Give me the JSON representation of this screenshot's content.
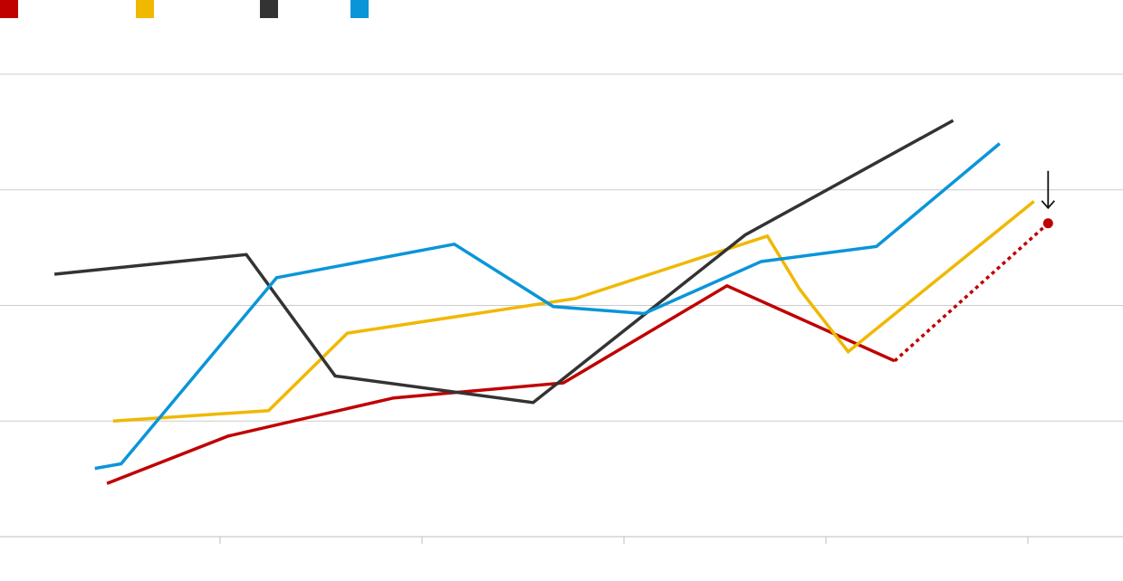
{
  "chart_data": {
    "type": "line",
    "title": "",
    "xlabel": "",
    "ylabel": "",
    "x": [
      0,
      1,
      2,
      3,
      4,
      5
    ],
    "xlim": [
      0,
      5.3
    ],
    "ylim": [
      0,
      4
    ],
    "grid": true,
    "legend_position": "top-left",
    "series": [
      {
        "name": "",
        "color": "#c00000",
        "points": [
          [
            0.44,
            0.46
          ],
          [
            1.04,
            0.87
          ],
          [
            1.86,
            1.2
          ],
          [
            2.7,
            1.33
          ],
          [
            3.51,
            2.17
          ],
          [
            4.34,
            1.52
          ],
          [
            5.1,
            2.71
          ]
        ],
        "dashed_from_index": 5,
        "end_marker": true
      },
      {
        "name": "",
        "color": "#f0b800",
        "points": [
          [
            0.47,
            1.0
          ],
          [
            1.24,
            1.09
          ],
          [
            1.63,
            1.76
          ],
          [
            2.76,
            2.06
          ],
          [
            3.71,
            2.6
          ],
          [
            3.87,
            2.14
          ],
          [
            4.11,
            1.6
          ],
          [
            5.03,
            2.9
          ]
        ]
      },
      {
        "name": "",
        "color": "#333333",
        "points": [
          [
            0.18,
            2.27
          ],
          [
            1.13,
            2.44
          ],
          [
            1.57,
            1.39
          ],
          [
            2.55,
            1.16
          ],
          [
            3.6,
            2.61
          ],
          [
            4.63,
            3.6
          ]
        ]
      },
      {
        "name": "",
        "color": "#0a95d9",
        "points": [
          [
            0.38,
            0.59
          ],
          [
            0.51,
            0.63
          ],
          [
            1.28,
            2.24
          ],
          [
            2.16,
            2.53
          ],
          [
            2.65,
            1.99
          ],
          [
            3.1,
            1.93
          ],
          [
            3.68,
            2.38
          ],
          [
            4.25,
            2.51
          ],
          [
            4.86,
            3.4
          ]
        ]
      }
    ],
    "annotation": {
      "type": "arrow-down",
      "points_to_series_index": 0
    }
  }
}
